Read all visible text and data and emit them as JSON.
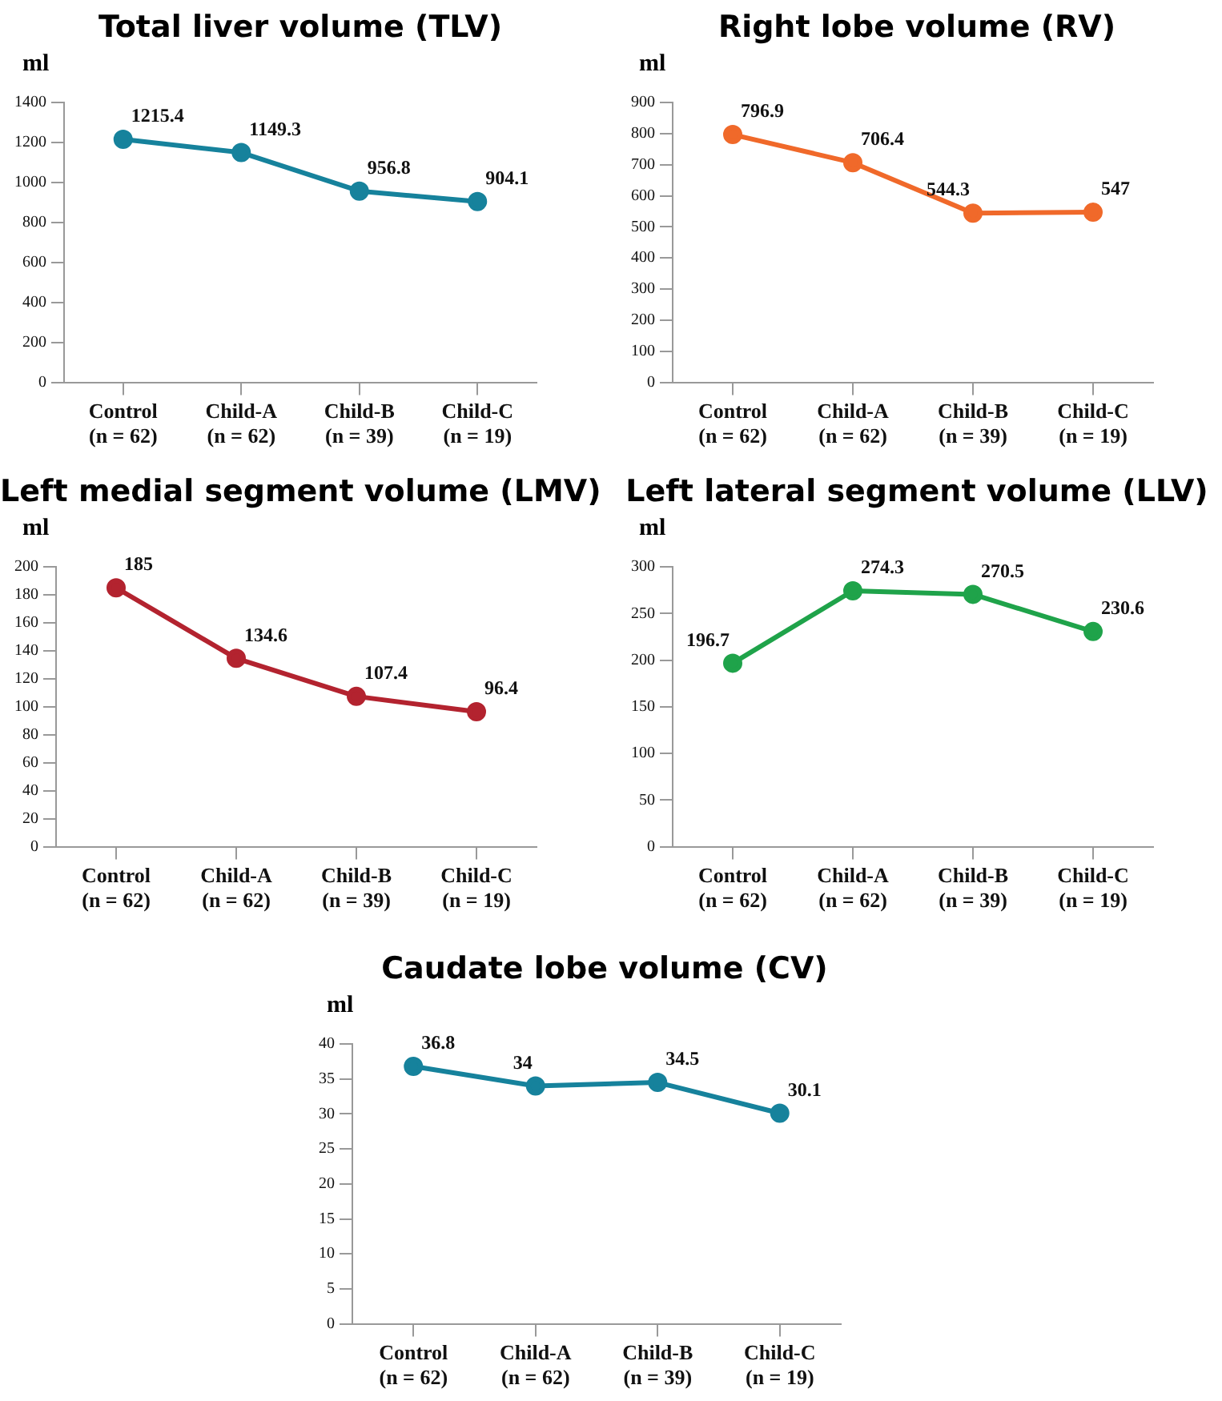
{
  "chart_data": [
    {
      "type": "line",
      "title": "Total liver volume (TLV)",
      "ylabel": "ml",
      "categories": [
        "Control\n(n = 62)",
        "Child-A\n(n = 62)",
        "Child-B\n(n = 39)",
        "Child-C\n(n = 19)"
      ],
      "series": [
        {
          "color": "#16829c",
          "values": [
            1215.4,
            1149.3,
            956.8,
            904.1
          ]
        }
      ],
      "ylim": [
        0,
        1400
      ],
      "yticks": [
        0,
        200,
        400,
        600,
        800,
        1000,
        1200,
        1400
      ],
      "grid": false,
      "legend": false,
      "marker": "circle",
      "data_labels": true
    },
    {
      "type": "line",
      "title": "Right lobe volume (RV)",
      "ylabel": "ml",
      "categories": [
        "Control\n(n = 62)",
        "Child-A\n(n = 62)",
        "Child-B\n(n = 39)",
        "Child-C\n(n = 19)"
      ],
      "series": [
        {
          "color": "#f0692a",
          "values": [
            796.9,
            706.4,
            544.3,
            547
          ]
        }
      ],
      "ylim": [
        0,
        900
      ],
      "yticks": [
        0,
        100,
        200,
        300,
        400,
        500,
        600,
        700,
        800,
        900
      ],
      "grid": false,
      "legend": false,
      "marker": "circle",
      "data_labels": true
    },
    {
      "type": "line",
      "title": "Left medial segment volume (LMV)",
      "ylabel": "ml",
      "categories": [
        "Control\n(n = 62)",
        "Child-A\n(n = 62)",
        "Child-B\n(n = 39)",
        "Child-C\n(n = 19)"
      ],
      "series": [
        {
          "color": "#b3232f",
          "values": [
            185,
            134.6,
            107.4,
            96.4
          ]
        }
      ],
      "ylim": [
        0,
        200
      ],
      "yticks": [
        0,
        20,
        40,
        60,
        80,
        100,
        120,
        140,
        160,
        180,
        200
      ],
      "grid": false,
      "legend": false,
      "marker": "circle",
      "data_labels": true
    },
    {
      "type": "line",
      "title": "Left lateral segment volume (LLV)",
      "ylabel": "ml",
      "categories": [
        "Control\n(n = 62)",
        "Child-A\n(n = 62)",
        "Child-B\n(n = 39)",
        "Child-C\n(n = 19)"
      ],
      "series": [
        {
          "color": "#1fa34a",
          "values": [
            196.7,
            274.3,
            270.5,
            230.6
          ]
        }
      ],
      "ylim": [
        0,
        300
      ],
      "yticks": [
        0,
        50,
        100,
        150,
        200,
        250,
        300
      ],
      "grid": false,
      "legend": false,
      "marker": "circle",
      "data_labels": true
    },
    {
      "type": "line",
      "title": "Caudate lobe volume (CV)",
      "ylabel": "ml",
      "categories": [
        "Control\n(n = 62)",
        "Child-A\n(n = 62)",
        "Child-B\n(n = 39)",
        "Child-C\n(n = 19)"
      ],
      "series": [
        {
          "color": "#16829c",
          "values": [
            36.8,
            34,
            34.5,
            30.1
          ]
        }
      ],
      "ylim": [
        0,
        40
      ],
      "yticks": [
        0,
        5,
        10,
        15,
        20,
        25,
        30,
        35,
        40
      ],
      "grid": false,
      "legend": false,
      "marker": "circle",
      "data_labels": true
    }
  ]
}
